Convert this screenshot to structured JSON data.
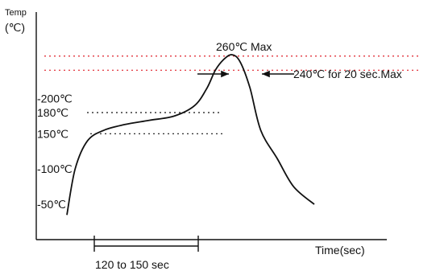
{
  "chart_data": {
    "type": "line",
    "y_axis_label_line1": "Temp",
    "y_axis_label_line2": "(℃)",
    "x_axis_label": "Time(sec)",
    "y_ticks": [
      {
        "label": "-200℃",
        "value": 200
      },
      {
        "label": "180℃",
        "value": 180
      },
      {
        "label": "150℃",
        "value": 150
      },
      {
        "label": "-100℃",
        "value": 100
      },
      {
        "label": "-50℃",
        "value": 50
      }
    ],
    "reference_lines": [
      {
        "value": 260,
        "style": "dotted",
        "color": "#e0202a"
      },
      {
        "value": 240,
        "style": "dotted",
        "color": "#e0202a"
      },
      {
        "value": 180,
        "style": "dotted",
        "color": "#111111"
      },
      {
        "value": 150,
        "style": "dotted",
        "color": "#111111"
      }
    ],
    "annotations": {
      "peak": "260℃ Max",
      "dwell": "240℃ for 20 sec.Max",
      "soak": "120 to 150 sec"
    },
    "curve": {
      "name": "",
      "x": [
        0,
        10,
        25,
        45,
        70,
        100,
        130,
        155,
        170,
        180,
        190,
        200,
        210,
        222,
        235,
        255,
        275,
        300
      ],
      "y": [
        35,
        100,
        140,
        155,
        163,
        169,
        175,
        190,
        215,
        240,
        255,
        262,
        252,
        215,
        155,
        115,
        75,
        50
      ]
    },
    "ylim": [
      0,
      290
    ],
    "xlim": [
      -30,
      350
    ],
    "grid": false
  }
}
